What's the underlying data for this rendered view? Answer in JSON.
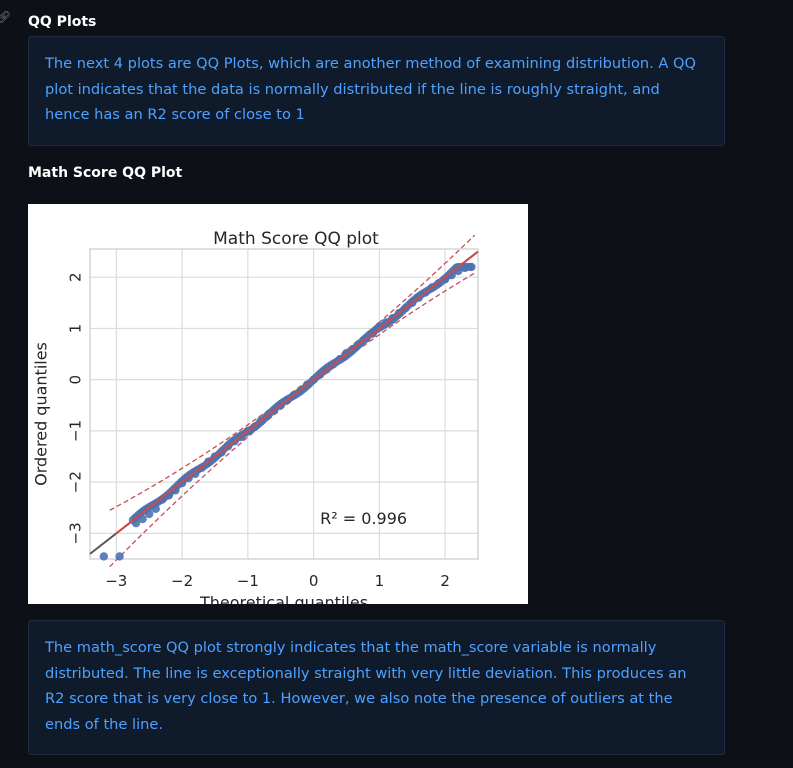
{
  "sections": {
    "qq_heading": "QQ Plots",
    "qq_intro": "The next 4 plots are QQ Plots, which are another method of examining distribution. A QQ plot indicates that the data is normally distributed if the line is roughly straight, and hence has an R2 score of close to 1",
    "math_heading": "Math Score QQ Plot",
    "math_note": "The math_score QQ plot strongly indicates that the math_score variable is normally distributed. The line is exceptionally straight with very little deviation. This produces an R2 score that is very close to 1. However, we also note the presence of outliers at the ends of the line."
  },
  "colors": {
    "page_bg": "#0d1117",
    "callout_bg": "#0f1b2b",
    "callout_text": "#4ea1ff",
    "points": "#4c72b0",
    "fit_line": "#c44e52"
  },
  "chart_data": {
    "type": "scatter",
    "title": "Math Score QQ plot",
    "xlabel": "Theoretical quantiles",
    "ylabel": "Ordered quantiles",
    "xlim": [
      -3.4,
      2.5
    ],
    "ylim": [
      -3.5,
      2.55
    ],
    "xticks": [
      -3,
      -2,
      -1,
      0,
      1,
      2
    ],
    "yticks": [
      -3,
      -2,
      -1,
      0,
      1,
      2
    ],
    "xtick_labels": [
      "−3",
      "−2",
      "−1",
      "0",
      "1",
      "2"
    ],
    "ytick_labels": [
      "−3",
      "−2",
      "−1",
      "0",
      "1",
      "2"
    ],
    "grid": true,
    "annotation": "R² = 0.996",
    "fit_line": {
      "slope": 1.0,
      "intercept": 0.0
    },
    "confidence_band": "dashed",
    "outliers": [
      {
        "x": -3.19,
        "y": -3.45
      },
      {
        "x": -2.95,
        "y": -3.45
      }
    ],
    "points": [
      {
        "x": -2.7,
        "y": -2.8
      },
      {
        "x": -2.6,
        "y": -2.72
      },
      {
        "x": -2.5,
        "y": -2.62
      },
      {
        "x": -2.4,
        "y": -2.52
      },
      {
        "x": -2.3,
        "y": -2.34
      },
      {
        "x": -2.2,
        "y": -2.26
      },
      {
        "x": -2.1,
        "y": -2.16
      },
      {
        "x": -2.0,
        "y": -2.02
      },
      {
        "x": -1.9,
        "y": -1.92
      },
      {
        "x": -1.8,
        "y": -1.84
      },
      {
        "x": -1.7,
        "y": -1.72
      },
      {
        "x": -1.6,
        "y": -1.6
      },
      {
        "x": -1.5,
        "y": -1.5
      },
      {
        "x": -1.4,
        "y": -1.42
      },
      {
        "x": -1.3,
        "y": -1.3
      },
      {
        "x": -1.2,
        "y": -1.2
      },
      {
        "x": -1.1,
        "y": -1.12
      },
      {
        "x": -1.0,
        "y": -1.0
      },
      {
        "x": -0.9,
        "y": -0.92
      },
      {
        "x": -0.8,
        "y": -0.8
      },
      {
        "x": -0.7,
        "y": -0.7
      },
      {
        "x": -0.6,
        "y": -0.6
      },
      {
        "x": -0.5,
        "y": -0.5
      },
      {
        "x": -0.4,
        "y": -0.4
      },
      {
        "x": -0.3,
        "y": -0.3
      },
      {
        "x": -0.2,
        "y": -0.22
      },
      {
        "x": -0.1,
        "y": -0.1
      },
      {
        "x": 0.0,
        "y": 0.0
      },
      {
        "x": 0.1,
        "y": 0.1
      },
      {
        "x": 0.2,
        "y": 0.2
      },
      {
        "x": 0.3,
        "y": 0.3
      },
      {
        "x": 0.4,
        "y": 0.4
      },
      {
        "x": 0.5,
        "y": 0.52
      },
      {
        "x": 0.6,
        "y": 0.6
      },
      {
        "x": 0.7,
        "y": 0.7
      },
      {
        "x": 0.8,
        "y": 0.8
      },
      {
        "x": 0.9,
        "y": 0.9
      },
      {
        "x": 1.0,
        "y": 1.04
      },
      {
        "x": 1.1,
        "y": 1.12
      },
      {
        "x": 1.2,
        "y": 1.2
      },
      {
        "x": 1.3,
        "y": 1.3
      },
      {
        "x": 1.4,
        "y": 1.4
      },
      {
        "x": 1.5,
        "y": 1.5
      },
      {
        "x": 1.6,
        "y": 1.6
      },
      {
        "x": 1.7,
        "y": 1.7
      },
      {
        "x": 1.8,
        "y": 1.8
      },
      {
        "x": 1.9,
        "y": 1.88
      },
      {
        "x": 2.0,
        "y": 1.96
      },
      {
        "x": 2.1,
        "y": 2.04
      },
      {
        "x": 2.2,
        "y": 2.12
      },
      {
        "x": 2.3,
        "y": 2.18
      },
      {
        "x": 2.4,
        "y": 2.2
      }
    ]
  }
}
